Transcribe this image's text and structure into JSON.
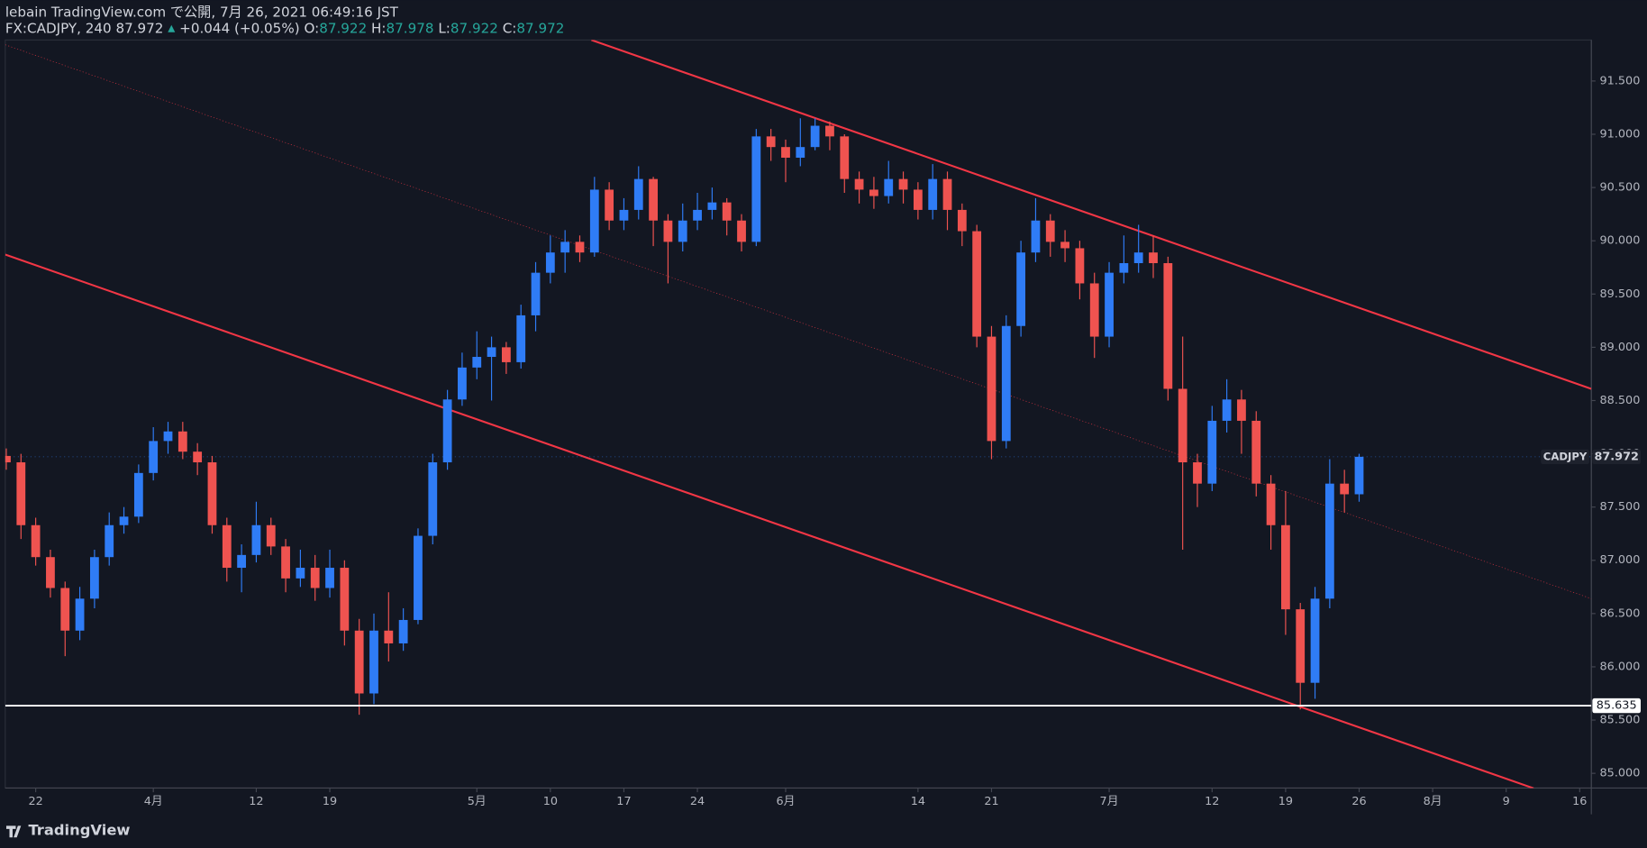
{
  "header": {
    "publisher": "lebain TradingView.com で公開, 7月 26, 2021 06:49:16 JST",
    "symbol": "FX:CADJPY, 240 87.972",
    "arrow": "▲",
    "change": "+0.044 (+0.05%)",
    "open_label": "O:",
    "open": "87.922",
    "high_label": "H:",
    "high": "87.978",
    "low_label": "L:",
    "low": "87.922",
    "close_label": "C:",
    "close": "87.972"
  },
  "footer": {
    "brand": "TradingView"
  },
  "chart_data": {
    "type": "candlestick",
    "symbol_label": "CADJPY",
    "up_color": "#2f7cf6",
    "down_color": "#ef5350",
    "line_color": "#f23645",
    "x": [
      -2,
      -1,
      0,
      1,
      2,
      3,
      4,
      5,
      6,
      7,
      8,
      9,
      10,
      11,
      12,
      13,
      14,
      15,
      16,
      17,
      18,
      19,
      20,
      21,
      22,
      23,
      24,
      25,
      26,
      27,
      28,
      29,
      30,
      31,
      32,
      33,
      34,
      35,
      36,
      37,
      38,
      39,
      40,
      41,
      42,
      43,
      44,
      45,
      46,
      47,
      48,
      49,
      50,
      51,
      52,
      53,
      54,
      55,
      56,
      57,
      58,
      59,
      60,
      61,
      62,
      63,
      64,
      65,
      66,
      67,
      68,
      69,
      70,
      71,
      72,
      73,
      74,
      75,
      76,
      77,
      78,
      79,
      80,
      81,
      82,
      83,
      84,
      85,
      86,
      87,
      88,
      89,
      90
    ],
    "open": [
      87.98,
      87.92,
      87.33,
      87.03,
      86.74,
      86.34,
      86.64,
      87.03,
      87.33,
      87.41,
      87.82,
      88.12,
      88.21,
      88.02,
      87.92,
      87.33,
      86.93,
      87.05,
      87.33,
      87.13,
      86.83,
      86.93,
      86.74,
      86.93,
      86.34,
      85.75,
      86.34,
      86.22,
      86.44,
      87.23,
      87.92,
      88.51,
      88.81,
      88.91,
      89.0,
      88.86,
      89.3,
      89.7,
      89.89,
      89.99,
      89.89,
      90.48,
      90.19,
      90.29,
      90.58,
      90.19,
      89.99,
      90.19,
      90.29,
      90.36,
      90.19,
      89.99,
      90.98,
      90.88,
      90.78,
      90.88,
      91.08,
      90.98,
      90.58,
      90.48,
      90.42,
      90.58,
      90.48,
      90.29,
      90.58,
      90.29,
      90.09,
      89.1,
      88.12,
      89.2,
      89.89,
      90.19,
      89.99,
      89.93,
      89.6,
      89.1,
      89.7,
      89.79,
      89.89,
      89.79,
      88.61,
      87.92,
      87.72,
      88.31,
      88.51,
      88.31,
      87.72,
      87.33,
      86.54,
      85.85,
      86.64,
      87.72,
      87.62
    ],
    "high": [
      88.05,
      88.0,
      87.4,
      87.1,
      86.8,
      86.75,
      87.1,
      87.45,
      87.5,
      87.9,
      88.25,
      88.3,
      88.3,
      88.1,
      87.98,
      87.4,
      87.15,
      87.55,
      87.4,
      87.2,
      87.1,
      87.05,
      87.1,
      87.0,
      86.45,
      86.5,
      86.7,
      86.55,
      87.3,
      88.0,
      88.6,
      88.95,
      89.15,
      89.1,
      89.05,
      89.4,
      89.8,
      90.05,
      90.1,
      90.05,
      90.6,
      90.55,
      90.4,
      90.7,
      90.6,
      90.25,
      90.35,
      90.45,
      90.5,
      90.4,
      90.25,
      91.05,
      91.05,
      90.95,
      91.15,
      91.15,
      91.12,
      91.0,
      90.65,
      90.6,
      90.75,
      90.65,
      90.55,
      90.72,
      90.65,
      90.35,
      90.15,
      89.2,
      89.3,
      90.0,
      90.4,
      90.25,
      90.1,
      90.0,
      89.7,
      89.8,
      90.05,
      90.15,
      90.05,
      89.85,
      89.1,
      88.0,
      88.45,
      88.7,
      88.6,
      88.4,
      87.8,
      87.65,
      86.6,
      86.75,
      87.95,
      87.85,
      88.0
    ],
    "low": [
      87.85,
      87.2,
      86.95,
      86.65,
      86.1,
      86.25,
      86.55,
      86.95,
      87.25,
      87.35,
      87.75,
      88.0,
      87.95,
      87.8,
      87.25,
      86.8,
      86.7,
      86.98,
      87.05,
      86.7,
      86.75,
      86.62,
      86.65,
      86.2,
      85.55,
      85.65,
      86.05,
      86.15,
      86.4,
      87.15,
      87.85,
      88.45,
      88.7,
      88.5,
      88.75,
      88.8,
      89.15,
      89.6,
      89.7,
      89.8,
      89.85,
      90.1,
      90.1,
      90.2,
      89.95,
      89.6,
      89.9,
      90.1,
      90.2,
      90.05,
      89.9,
      89.95,
      90.75,
      90.55,
      90.7,
      90.85,
      90.85,
      90.45,
      90.35,
      90.3,
      90.35,
      90.35,
      90.2,
      90.2,
      90.1,
      89.95,
      89.0,
      87.95,
      88.05,
      89.1,
      89.8,
      89.85,
      89.8,
      89.45,
      88.9,
      89.0,
      89.6,
      89.7,
      89.65,
      88.5,
      87.1,
      87.5,
      87.65,
      88.2,
      88.0,
      87.6,
      87.1,
      86.3,
      85.6,
      85.7,
      86.55,
      87.45,
      87.55
    ],
    "close": [
      87.92,
      87.33,
      87.03,
      86.74,
      86.34,
      86.64,
      87.03,
      87.33,
      87.41,
      87.82,
      88.12,
      88.21,
      88.02,
      87.92,
      87.33,
      86.93,
      87.05,
      87.33,
      87.13,
      86.83,
      86.93,
      86.74,
      86.93,
      86.34,
      85.75,
      86.34,
      86.22,
      86.44,
      87.23,
      87.92,
      88.51,
      88.81,
      88.91,
      89.0,
      88.86,
      89.3,
      89.7,
      89.89,
      89.99,
      89.89,
      90.48,
      90.19,
      90.29,
      90.58,
      90.19,
      89.99,
      90.19,
      90.29,
      90.36,
      90.19,
      89.99,
      90.98,
      90.88,
      90.78,
      90.88,
      91.08,
      90.98,
      90.58,
      90.48,
      90.42,
      90.58,
      90.48,
      90.29,
      90.58,
      90.29,
      90.09,
      89.1,
      88.12,
      89.2,
      89.89,
      90.19,
      89.99,
      89.93,
      89.6,
      89.1,
      89.7,
      89.79,
      89.89,
      89.79,
      88.61,
      87.92,
      87.72,
      88.31,
      88.51,
      88.31,
      87.72,
      87.33,
      86.54,
      85.85,
      86.64,
      87.72,
      87.62,
      87.972
    ],
    "last_price": {
      "value": 87.972,
      "label": "87.972"
    },
    "level": {
      "value": 85.635,
      "label": "85.635"
    },
    "trendlines": [
      {
        "x": [
          37.79,
          105.79
        ],
        "y": [
          91.885,
          88.61
        ],
        "style": "solid"
      },
      {
        "x": [
          -2.07,
          101.86
        ],
        "y": [
          89.87,
          84.86
        ],
        "style": "solid"
      },
      {
        "x": [
          -2.07,
          105.79
        ],
        "y": [
          91.84,
          86.64
        ],
        "style": "dotted"
      }
    ],
    "xlim": [
      -2.07,
      105.79
    ],
    "ylim": [
      84.862,
      91.885
    ],
    "xticks": [
      {
        "value": 0,
        "label": "22"
      },
      {
        "value": 8,
        "label": "4月"
      },
      {
        "value": 15,
        "label": "12"
      },
      {
        "value": 20,
        "label": "19"
      },
      {
        "value": 30,
        "label": "5月"
      },
      {
        "value": 35,
        "label": "10"
      },
      {
        "value": 40,
        "label": "17"
      },
      {
        "value": 45,
        "label": "24"
      },
      {
        "value": 51,
        "label": "6月"
      },
      {
        "value": 60,
        "label": "14"
      },
      {
        "value": 65,
        "label": "21"
      },
      {
        "value": 73,
        "label": "7月"
      },
      {
        "value": 80,
        "label": "12"
      },
      {
        "value": 85,
        "label": "19"
      },
      {
        "value": 90,
        "label": "26"
      },
      {
        "value": 95,
        "label": "8月"
      },
      {
        "value": 100,
        "label": "9"
      },
      {
        "value": 105,
        "label": "16"
      }
    ],
    "yticks": [
      {
        "value": 85.0,
        "label": "85.000"
      },
      {
        "value": 85.5,
        "label": "85.500"
      },
      {
        "value": 86.0,
        "label": "86.000"
      },
      {
        "value": 86.5,
        "label": "86.500"
      },
      {
        "value": 87.0,
        "label": "87.000"
      },
      {
        "value": 87.5,
        "label": "87.500"
      },
      {
        "value": 88.0,
        "label": "88.000"
      },
      {
        "value": 88.5,
        "label": "88.500"
      },
      {
        "value": 89.0,
        "label": "89.000"
      },
      {
        "value": 89.5,
        "label": "89.500"
      },
      {
        "value": 90.0,
        "label": "90.000"
      },
      {
        "value": 90.5,
        "label": "90.500"
      },
      {
        "value": 91.0,
        "label": "91.000"
      },
      {
        "value": 91.5,
        "label": "91.500"
      }
    ]
  }
}
